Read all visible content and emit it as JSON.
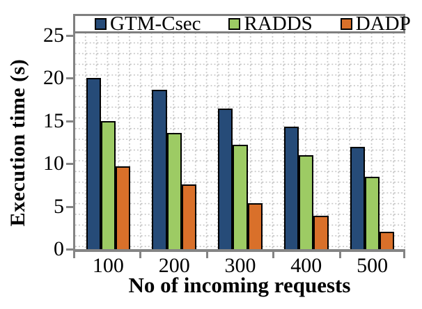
{
  "chart_data": {
    "type": "bar",
    "title": "",
    "xlabel": "No of incoming requests",
    "ylabel": "Execution time (s)",
    "categories": [
      "100",
      "200",
      "300",
      "400",
      "500"
    ],
    "series": [
      {
        "name": "GTM-Csec",
        "color": "#264B78",
        "values": [
          20.0,
          18.6,
          16.4,
          14.3,
          12.0
        ]
      },
      {
        "name": "RADDS",
        "color": "#9DCB64",
        "values": [
          15.0,
          13.6,
          12.2,
          11.0,
          8.5
        ]
      },
      {
        "name": "DADP",
        "color": "#D9702A",
        "values": [
          9.7,
          7.6,
          5.4,
          3.9,
          2.0
        ]
      }
    ],
    "yticks": [
      0,
      5,
      10,
      15,
      20,
      25
    ],
    "ylim": [
      0,
      25.3
    ],
    "legend_position": "top",
    "grid": "dotted-minor-both-axes"
  },
  "colors": {
    "axis": "#848484",
    "grid_dots": "#C2C2C2",
    "legend_border": "#7F7F7F",
    "bar_outline": "#000000",
    "text": "#000000",
    "background": "#FFFFFF"
  }
}
